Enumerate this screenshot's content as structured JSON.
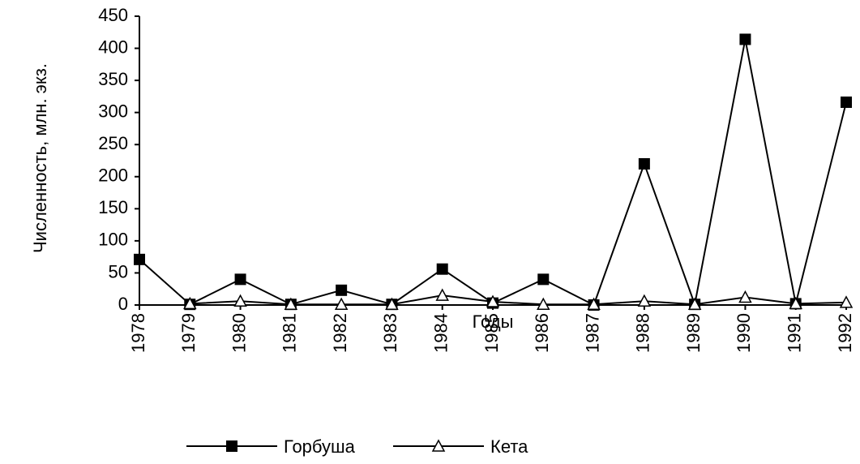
{
  "chart_data": {
    "type": "line",
    "x_label": "Годы",
    "y_label": "Численность, млн. экз.",
    "categories": [
      "1978",
      "1979",
      "1980",
      "1981",
      "1982",
      "1983",
      "1984",
      "1985",
      "1986",
      "1987",
      "1988",
      "1989",
      "1990",
      "1991",
      "1992"
    ],
    "series": [
      {
        "name": "Горбуша",
        "color": "#000000",
        "marker": "square",
        "values": [
          71,
          1,
          40,
          1,
          23,
          1,
          56,
          3,
          40,
          0,
          220,
          1,
          414,
          2,
          316
        ]
      },
      {
        "name": "Кета",
        "color": "#000000",
        "marker": "triangle",
        "values": [
          null,
          2,
          6,
          1,
          1,
          1,
          15,
          5,
          1,
          1,
          6,
          1,
          12,
          2,
          4
        ]
      }
    ],
    "ylim": [
      0,
      450
    ],
    "yticks": [
      0,
      50,
      100,
      150,
      200,
      250,
      300,
      350,
      400,
      450
    ],
    "legend": "bottom"
  }
}
